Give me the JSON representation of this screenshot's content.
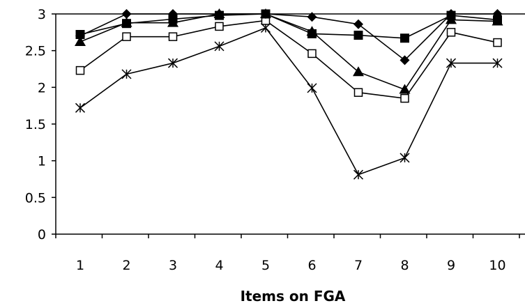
{
  "chart_data": {
    "type": "line",
    "title": "",
    "xlabel": "Items on FGA",
    "ylabel": "",
    "x": [
      1,
      2,
      3,
      4,
      5,
      6,
      7,
      8,
      9,
      10
    ],
    "ylim": [
      0,
      3
    ],
    "yticks": [
      "0",
      "0.5",
      "1",
      "1.5",
      "2",
      "2.5",
      "3"
    ],
    "grid": false,
    "legend": "none",
    "series": [
      {
        "marker": "diamond-filled",
        "values": [
          2.7,
          3.0,
          3.0,
          3.0,
          3.0,
          2.96,
          2.86,
          2.37,
          3.0,
          3.0
        ]
      },
      {
        "marker": "square-filled",
        "values": [
          2.72,
          2.87,
          2.93,
          2.98,
          3.0,
          2.73,
          2.71,
          2.67,
          2.98,
          2.92
        ]
      },
      {
        "marker": "triangle-filled",
        "values": [
          2.62,
          2.88,
          2.88,
          3.0,
          3.0,
          2.76,
          2.21,
          1.97,
          2.92,
          2.9
        ]
      },
      {
        "marker": "square-open",
        "values": [
          2.23,
          2.69,
          2.69,
          2.83,
          2.91,
          2.46,
          1.93,
          1.85,
          2.75,
          2.61
        ]
      },
      {
        "marker": "asterisk",
        "values": [
          1.72,
          2.18,
          2.33,
          2.56,
          2.81,
          1.99,
          0.81,
          1.04,
          2.33,
          2.33
        ]
      }
    ]
  }
}
